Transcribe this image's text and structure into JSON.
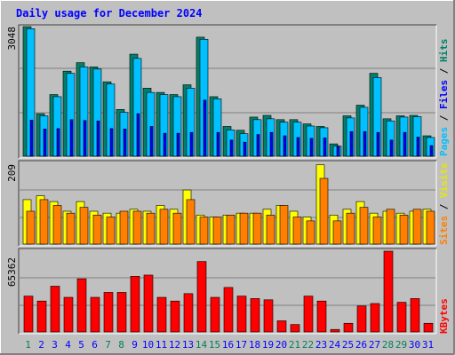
{
  "title": "Daily usage for December 2024",
  "colors": {
    "background": "#c0c0c0",
    "title": "#0000ff",
    "hits": "#00806b",
    "files": "#00c0ff",
    "pages": "#0000ff",
    "visits": "#ffff00",
    "sites": "#ff8000",
    "kbytes": "#ff0000",
    "weekend_label": "#00805c",
    "weekday_label": "#0000ff"
  },
  "chart_data": [
    {
      "type": "bar",
      "panel": "hits",
      "max_label": "3048",
      "ylim": [
        0,
        3048
      ],
      "legend": [
        "Pages",
        "Files",
        "Hits"
      ],
      "categories": [
        "1",
        "2",
        "3",
        "4",
        "5",
        "6",
        "7",
        "8",
        "9",
        "10",
        "11",
        "12",
        "13",
        "14",
        "15",
        "16",
        "17",
        "18",
        "19",
        "20",
        "21",
        "22",
        "23",
        "24",
        "25",
        "26",
        "27",
        "28",
        "29",
        "30",
        "31"
      ],
      "series": [
        {
          "name": "Hits",
          "values": [
            3048,
            1000,
            1450,
            2000,
            2200,
            2100,
            1750,
            1100,
            2400,
            1600,
            1500,
            1450,
            1680,
            2800,
            1400,
            700,
            610,
            920,
            960,
            860,
            860,
            760,
            700,
            290,
            950,
            1200,
            1950,
            880,
            950,
            960,
            480
          ]
        },
        {
          "name": "Files",
          "values": [
            3000,
            950,
            1400,
            1950,
            2100,
            2050,
            1700,
            1030,
            2300,
            1500,
            1450,
            1400,
            1600,
            2750,
            1350,
            620,
            530,
            860,
            880,
            800,
            800,
            710,
            670,
            240,
            900,
            1150,
            1850,
            830,
            920,
            930,
            440
          ]
        },
        {
          "name": "Pages",
          "values": [
            850,
            640,
            650,
            860,
            840,
            830,
            650,
            640,
            1000,
            700,
            540,
            540,
            560,
            1320,
            560,
            380,
            330,
            510,
            560,
            480,
            440,
            420,
            430,
            230,
            580,
            580,
            560,
            380,
            560,
            450,
            250
          ]
        }
      ]
    },
    {
      "type": "bar",
      "panel": "visits",
      "max_label": "209",
      "ylim": [
        0,
        209
      ],
      "legend": [
        "Sites",
        "Visits"
      ],
      "categories": [
        "1",
        "2",
        "3",
        "4",
        "5",
        "6",
        "7",
        "8",
        "9",
        "10",
        "11",
        "12",
        "13",
        "14",
        "15",
        "16",
        "17",
        "18",
        "19",
        "20",
        "21",
        "22",
        "23",
        "24",
        "25",
        "26",
        "27",
        "28",
        "29",
        "30",
        "31"
      ],
      "series": [
        {
          "name": "Visits",
          "values": [
            115,
            125,
            110,
            85,
            110,
            85,
            80,
            80,
            90,
            85,
            100,
            90,
            140,
            75,
            70,
            75,
            80,
            80,
            90,
            100,
            85,
            70,
            205,
            75,
            90,
            110,
            80,
            85,
            80,
            85,
            90
          ]
        },
        {
          "name": "Sites",
          "values": [
            85,
            115,
            100,
            80,
            95,
            75,
            70,
            85,
            85,
            80,
            90,
            80,
            115,
            70,
            70,
            75,
            80,
            80,
            75,
            100,
            70,
            60,
            170,
            60,
            80,
            95,
            70,
            90,
            75,
            90,
            85
          ]
        }
      ]
    },
    {
      "type": "bar",
      "panel": "kbytes",
      "max_label": "65362",
      "ylim": [
        0,
        65362
      ],
      "legend": [
        "KBytes"
      ],
      "categories": [
        "1",
        "2",
        "3",
        "4",
        "5",
        "6",
        "7",
        "8",
        "9",
        "10",
        "11",
        "12",
        "13",
        "14",
        "15",
        "16",
        "17",
        "18",
        "19",
        "20",
        "21",
        "22",
        "23",
        "24",
        "25",
        "26",
        "27",
        "28",
        "29",
        "30",
        "31"
      ],
      "series": [
        {
          "name": "KBytes",
          "values": [
            29000,
            25000,
            37000,
            28000,
            43000,
            28000,
            32000,
            32000,
            45000,
            46000,
            28000,
            25000,
            31000,
            57000,
            28000,
            36000,
            29000,
            27000,
            26000,
            9000,
            6000,
            29000,
            25000,
            2000,
            7000,
            21000,
            23000,
            65362,
            24000,
            27000,
            7000
          ]
        }
      ]
    }
  ],
  "x_labels": {
    "days": [
      "1",
      "2",
      "3",
      "4",
      "5",
      "6",
      "7",
      "8",
      "9",
      "10",
      "11",
      "12",
      "13",
      "14",
      "15",
      "16",
      "17",
      "18",
      "19",
      "20",
      "21",
      "22",
      "23",
      "24",
      "25",
      "26",
      "27",
      "28",
      "29",
      "30",
      "31"
    ],
    "weekend_days": [
      "1",
      "7",
      "8",
      "14",
      "15",
      "21",
      "22",
      "28",
      "29"
    ]
  },
  "legend_separator": " / "
}
